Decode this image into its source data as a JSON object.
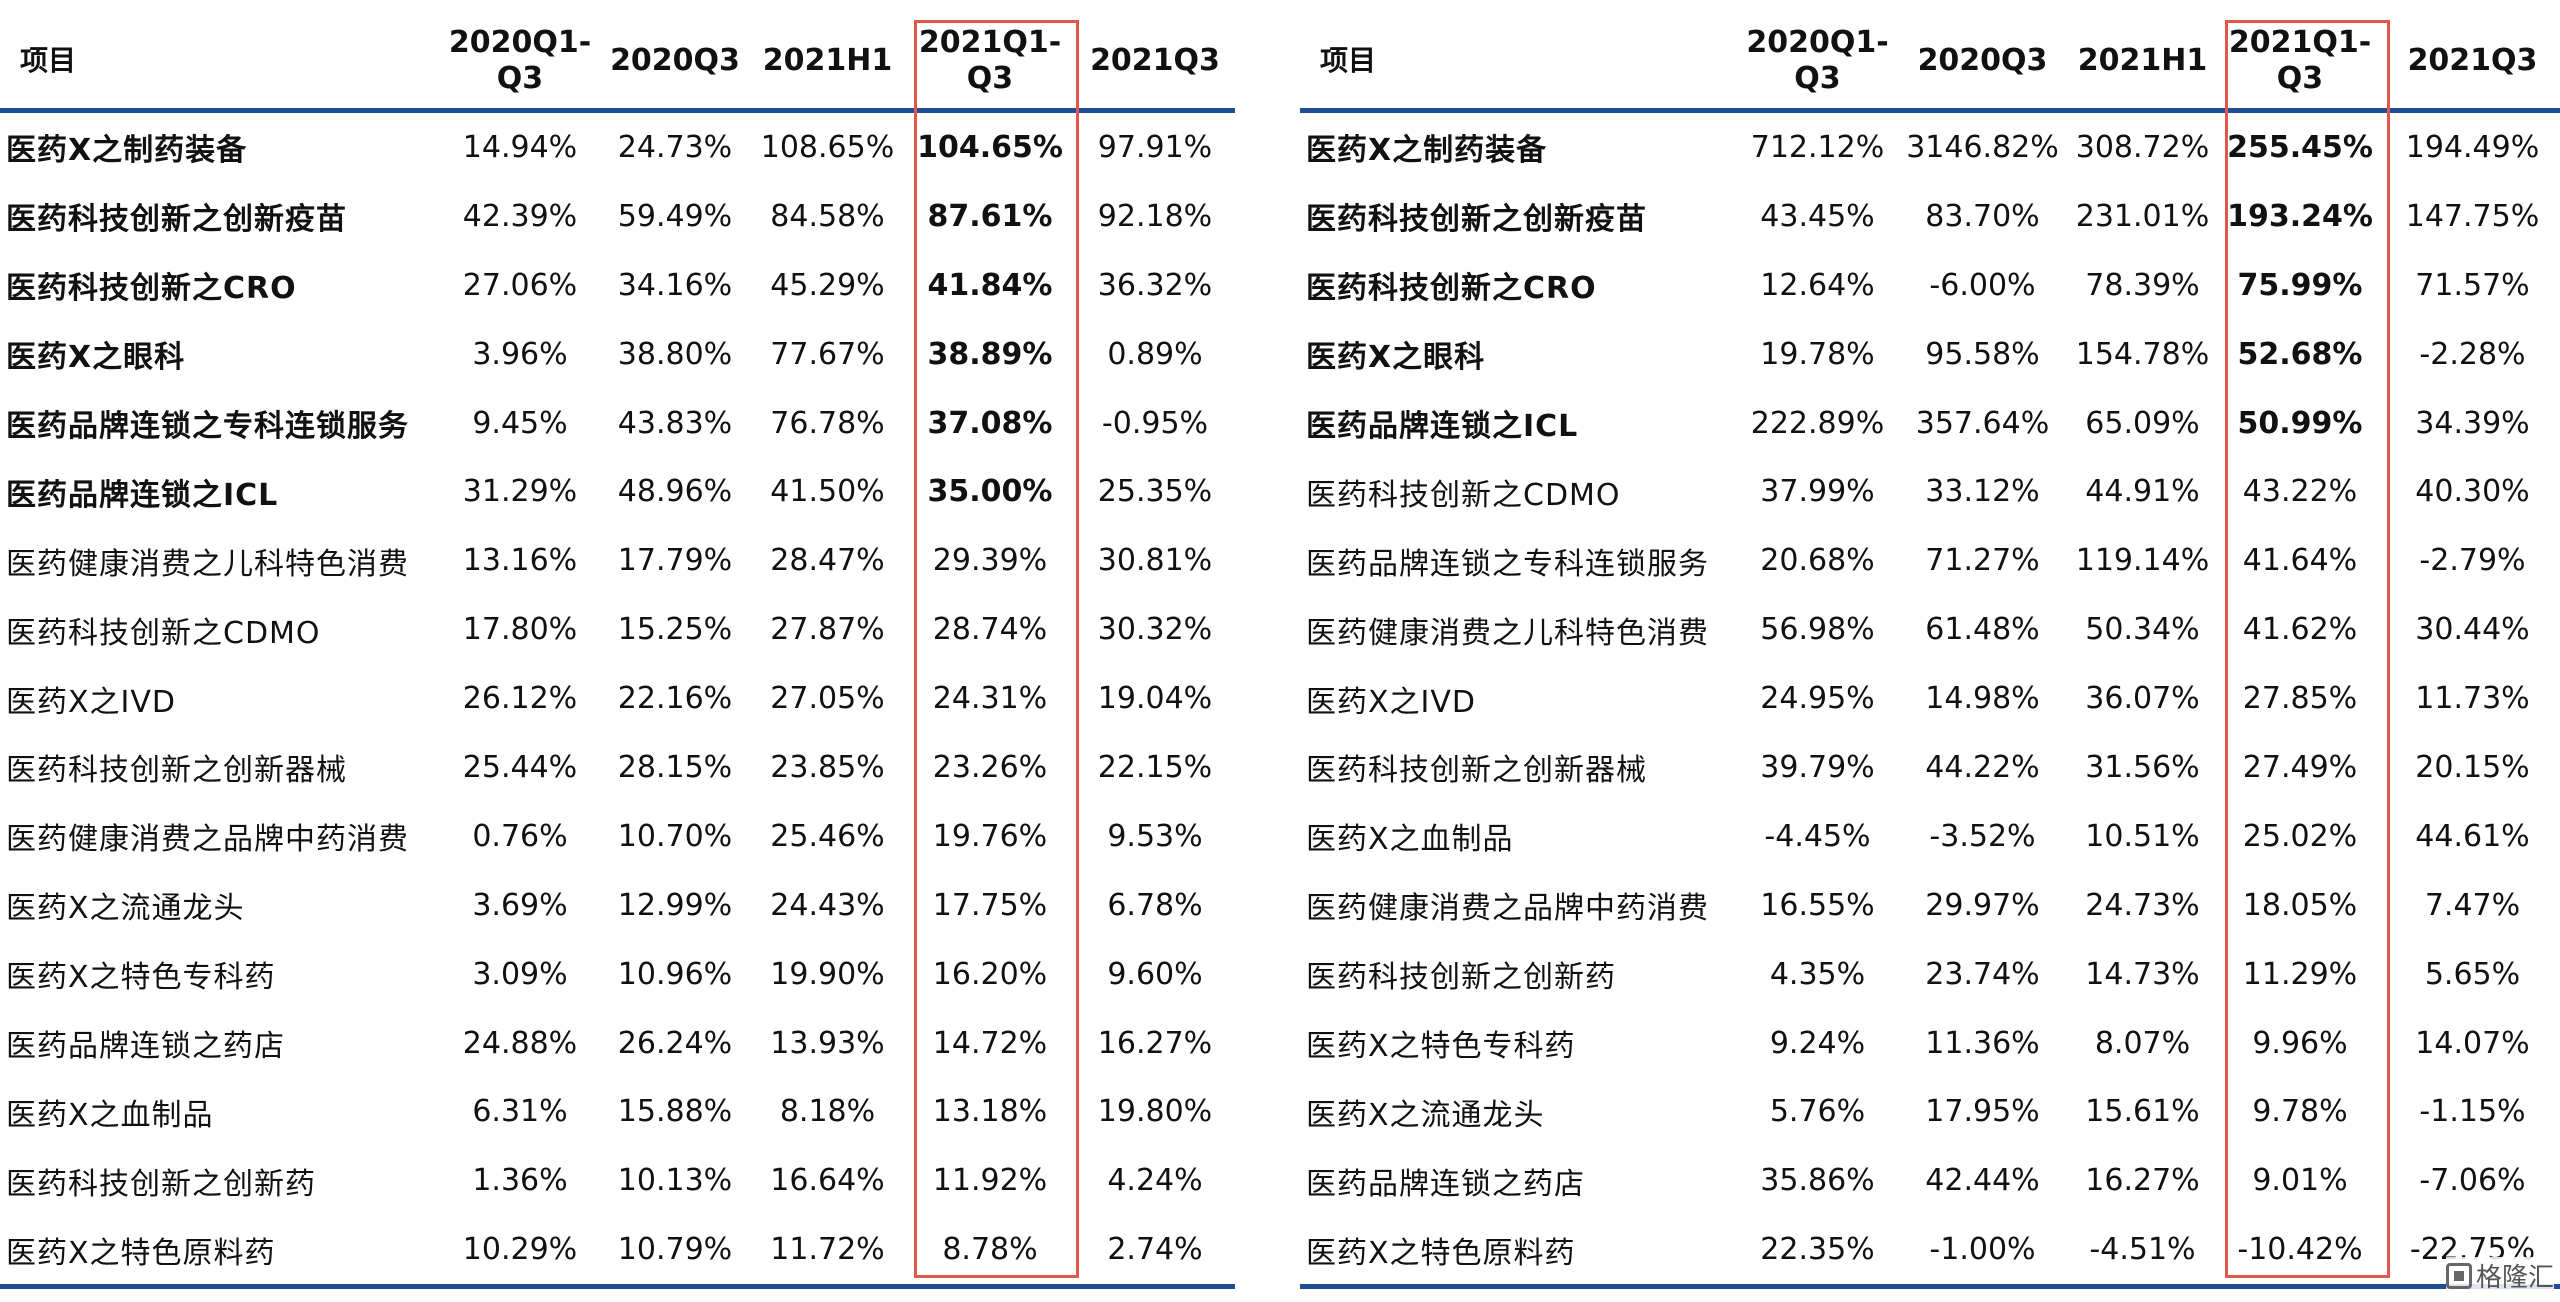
{
  "left_table": {
    "headers": [
      "项目",
      "2020Q1-\nQ3",
      "2020Q3",
      "2021H1",
      "2021Q1-\nQ3",
      "2021Q3"
    ],
    "rows": [
      {
        "name": "医药X之制药装备",
        "bold": true,
        "values": [
          "14.94%",
          "24.73%",
          "108.65%",
          "104.65%",
          "97.91%"
        ]
      },
      {
        "name": "医药科技创新之创新疫苗",
        "bold": true,
        "values": [
          "42.39%",
          "59.49%",
          "84.58%",
          "87.61%",
          "92.18%"
        ]
      },
      {
        "name": "医药科技创新之CRO",
        "bold": true,
        "values": [
          "27.06%",
          "34.16%",
          "45.29%",
          "41.84%",
          "36.32%"
        ]
      },
      {
        "name": "医药X之眼科",
        "bold": true,
        "values": [
          "3.96%",
          "38.80%",
          "77.67%",
          "38.89%",
          "0.89%"
        ]
      },
      {
        "name": "医药品牌连锁之专科连锁服务",
        "bold": true,
        "values": [
          "9.45%",
          "43.83%",
          "76.78%",
          "37.08%",
          "-0.95%"
        ]
      },
      {
        "name": "医药品牌连锁之ICL",
        "bold": true,
        "values": [
          "31.29%",
          "48.96%",
          "41.50%",
          "35.00%",
          "25.35%"
        ]
      },
      {
        "name": "医药健康消费之儿科特色消费",
        "bold": false,
        "values": [
          "13.16%",
          "17.79%",
          "28.47%",
          "29.39%",
          "30.81%"
        ]
      },
      {
        "name": "医药科技创新之CDMO",
        "bold": false,
        "values": [
          "17.80%",
          "15.25%",
          "27.87%",
          "28.74%",
          "30.32%"
        ]
      },
      {
        "name": "医药X之IVD",
        "bold": false,
        "values": [
          "26.12%",
          "22.16%",
          "27.05%",
          "24.31%",
          "19.04%"
        ]
      },
      {
        "name": "医药科技创新之创新器械",
        "bold": false,
        "values": [
          "25.44%",
          "28.15%",
          "23.85%",
          "23.26%",
          "22.15%"
        ]
      },
      {
        "name": "医药健康消费之品牌中药消费",
        "bold": false,
        "values": [
          "0.76%",
          "10.70%",
          "25.46%",
          "19.76%",
          "9.53%"
        ]
      },
      {
        "name": "医药X之流通龙头",
        "bold": false,
        "values": [
          "3.69%",
          "12.99%",
          "24.43%",
          "17.75%",
          "6.78%"
        ]
      },
      {
        "name": "医药X之特色专科药",
        "bold": false,
        "values": [
          "3.09%",
          "10.96%",
          "19.90%",
          "16.20%",
          "9.60%"
        ]
      },
      {
        "name": "医药品牌连锁之药店",
        "bold": false,
        "values": [
          "24.88%",
          "26.24%",
          "13.93%",
          "14.72%",
          "16.27%"
        ]
      },
      {
        "name": "医药X之血制品",
        "bold": false,
        "values": [
          "6.31%",
          "15.88%",
          "8.18%",
          "13.18%",
          "19.80%"
        ]
      },
      {
        "name": "医药科技创新之创新药",
        "bold": false,
        "values": [
          "1.36%",
          "10.13%",
          "16.64%",
          "11.92%",
          "4.24%"
        ]
      },
      {
        "name": "医药X之特色原料药",
        "bold": false,
        "values": [
          "10.29%",
          "10.79%",
          "11.72%",
          "8.78%",
          "2.74%"
        ]
      }
    ]
  },
  "right_table": {
    "headers": [
      "项目",
      "2020Q1-\nQ3",
      "2020Q3",
      "2021H1",
      "2021Q1-\nQ3",
      "2021Q3"
    ],
    "rows": [
      {
        "name": "医药X之制药装备",
        "bold": true,
        "values": [
          "712.12%",
          "3146.82%",
          "308.72%",
          "255.45%",
          "194.49%"
        ]
      },
      {
        "name": "医药科技创新之创新疫苗",
        "bold": true,
        "values": [
          "43.45%",
          "83.70%",
          "231.01%",
          "193.24%",
          "147.75%"
        ]
      },
      {
        "name": "医药科技创新之CRO",
        "bold": true,
        "values": [
          "12.64%",
          "-6.00%",
          "78.39%",
          "75.99%",
          "71.57%"
        ]
      },
      {
        "name": "医药X之眼科",
        "bold": true,
        "values": [
          "19.78%",
          "95.58%",
          "154.78%",
          "52.68%",
          "-2.28%"
        ]
      },
      {
        "name": "医药品牌连锁之ICL",
        "bold": true,
        "values": [
          "222.89%",
          "357.64%",
          "65.09%",
          "50.99%",
          "34.39%"
        ]
      },
      {
        "name": "医药科技创新之CDMO",
        "bold": false,
        "values": [
          "37.99%",
          "33.12%",
          "44.91%",
          "43.22%",
          "40.30%"
        ]
      },
      {
        "name": "医药品牌连锁之专科连锁服务",
        "bold": false,
        "values": [
          "20.68%",
          "71.27%",
          "119.14%",
          "41.64%",
          "-2.79%"
        ]
      },
      {
        "name": "医药健康消费之儿科特色消费",
        "bold": false,
        "values": [
          "56.98%",
          "61.48%",
          "50.34%",
          "41.62%",
          "30.44%"
        ]
      },
      {
        "name": "医药X之IVD",
        "bold": false,
        "values": [
          "24.95%",
          "14.98%",
          "36.07%",
          "27.85%",
          "11.73%"
        ]
      },
      {
        "name": "医药科技创新之创新器械",
        "bold": false,
        "values": [
          "39.79%",
          "44.22%",
          "31.56%",
          "27.49%",
          "20.15%"
        ]
      },
      {
        "name": "医药X之血制品",
        "bold": false,
        "values": [
          "-4.45%",
          "-3.52%",
          "10.51%",
          "25.02%",
          "44.61%"
        ]
      },
      {
        "name": "医药健康消费之品牌中药消费",
        "bold": false,
        "values": [
          "16.55%",
          "29.97%",
          "24.73%",
          "18.05%",
          "7.47%"
        ]
      },
      {
        "name": "医药科技创新之创新药",
        "bold": false,
        "values": [
          "4.35%",
          "23.74%",
          "14.73%",
          "11.29%",
          "5.65%"
        ]
      },
      {
        "name": "医药X之特色专科药",
        "bold": false,
        "values": [
          "9.24%",
          "11.36%",
          "8.07%",
          "9.96%",
          "14.07%"
        ]
      },
      {
        "name": "医药X之流通龙头",
        "bold": false,
        "values": [
          "5.76%",
          "17.95%",
          "15.61%",
          "9.78%",
          "-1.15%"
        ]
      },
      {
        "name": "医药品牌连锁之药店",
        "bold": false,
        "values": [
          "35.86%",
          "42.44%",
          "16.27%",
          "9.01%",
          "-7.06%"
        ]
      },
      {
        "name": "医药X之特色原料药",
        "bold": false,
        "values": [
          "22.35%",
          "-1.00%",
          "-4.51%",
          "-10.42%",
          "-22.75%"
        ]
      }
    ]
  },
  "colors": {
    "header_rule": "#1f4e96",
    "highlight_box": "#e0584d"
  },
  "watermark": {
    "text": "格隆汇",
    "icon": "gelonghui-logo-icon"
  }
}
